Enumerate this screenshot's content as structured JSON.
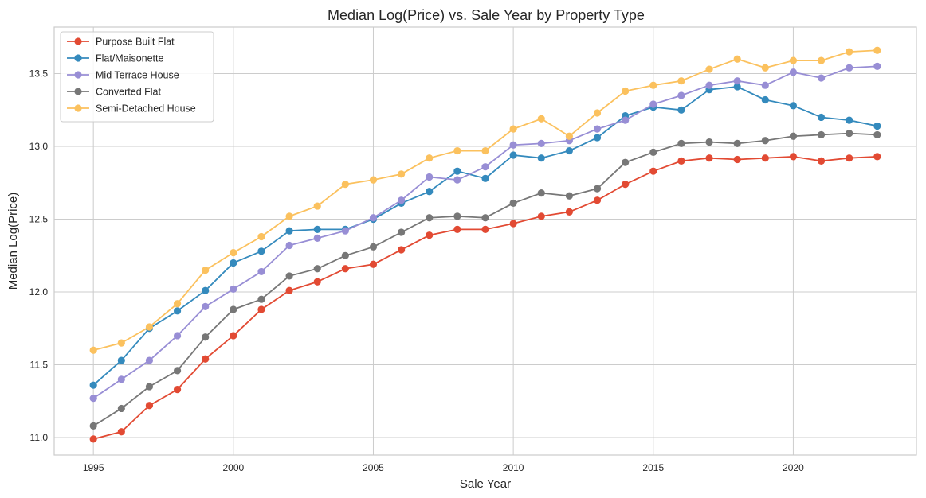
{
  "chart_data": {
    "type": "line",
    "title": "Median Log(Price) vs. Sale Year by Property Type",
    "xlabel": "Sale Year",
    "ylabel": "Median Log(Price)",
    "xlim": [
      1993.6,
      2024.4
    ],
    "ylim": [
      10.88,
      13.82
    ],
    "xticks": [
      1995,
      2000,
      2005,
      2010,
      2015,
      2020
    ],
    "yticks": [
      11.0,
      11.5,
      12.0,
      12.5,
      13.0,
      13.5
    ],
    "ytick_labels": [
      "11.0",
      "11.5",
      "12.0",
      "12.5",
      "13.0",
      "13.5"
    ],
    "grid": true,
    "legend_position": "top-left",
    "x": [
      1995,
      1996,
      1997,
      1998,
      1999,
      2000,
      2001,
      2002,
      2003,
      2004,
      2005,
      2006,
      2007,
      2008,
      2009,
      2010,
      2011,
      2012,
      2013,
      2014,
      2015,
      2016,
      2017,
      2018,
      2019,
      2020,
      2021,
      2022,
      2023
    ],
    "series": [
      {
        "name": "Purpose Built Flat",
        "color": "#E24A33",
        "values": [
          10.99,
          11.04,
          11.22,
          11.33,
          11.54,
          11.7,
          11.88,
          12.01,
          12.07,
          12.16,
          12.19,
          12.29,
          12.39,
          12.43,
          12.43,
          12.47,
          12.52,
          12.55,
          12.63,
          12.74,
          12.83,
          12.9,
          12.92,
          12.91,
          12.92,
          12.93,
          12.9,
          12.92,
          12.93
        ]
      },
      {
        "name": "Flat/Maisonette",
        "color": "#348ABD",
        "values": [
          11.36,
          11.53,
          11.75,
          11.87,
          12.01,
          12.2,
          12.28,
          12.42,
          12.43,
          12.43,
          12.5,
          12.61,
          12.69,
          12.83,
          12.78,
          12.94,
          12.92,
          12.97,
          13.06,
          13.21,
          13.27,
          13.25,
          13.39,
          13.41,
          13.32,
          13.28,
          13.2,
          13.18,
          13.14
        ]
      },
      {
        "name": "Mid Terrace House",
        "color": "#988ED5",
        "values": [
          11.27,
          11.4,
          11.53,
          11.7,
          11.9,
          12.02,
          12.14,
          12.32,
          12.37,
          12.42,
          12.51,
          12.63,
          12.79,
          12.77,
          12.86,
          13.01,
          13.02,
          13.04,
          13.12,
          13.18,
          13.29,
          13.35,
          13.42,
          13.45,
          13.42,
          13.51,
          13.47,
          13.54,
          13.55
        ]
      },
      {
        "name": "Converted Flat",
        "color": "#777777",
        "values": [
          11.08,
          11.2,
          11.35,
          11.46,
          11.69,
          11.88,
          11.95,
          12.11,
          12.16,
          12.25,
          12.31,
          12.41,
          12.51,
          12.52,
          12.51,
          12.61,
          12.68,
          12.66,
          12.71,
          12.89,
          12.96,
          13.02,
          13.03,
          13.02,
          13.04,
          13.07,
          13.08,
          13.09,
          13.08
        ]
      },
      {
        "name": "Semi-Detached House",
        "color": "#FBC15E",
        "values": [
          11.6,
          11.65,
          11.76,
          11.92,
          12.15,
          12.27,
          12.38,
          12.52,
          12.59,
          12.74,
          12.77,
          12.81,
          12.92,
          12.97,
          12.97,
          13.12,
          13.19,
          13.07,
          13.23,
          13.38,
          13.42,
          13.45,
          13.53,
          13.6,
          13.54,
          13.59,
          13.59,
          13.65,
          13.66
        ]
      }
    ]
  }
}
